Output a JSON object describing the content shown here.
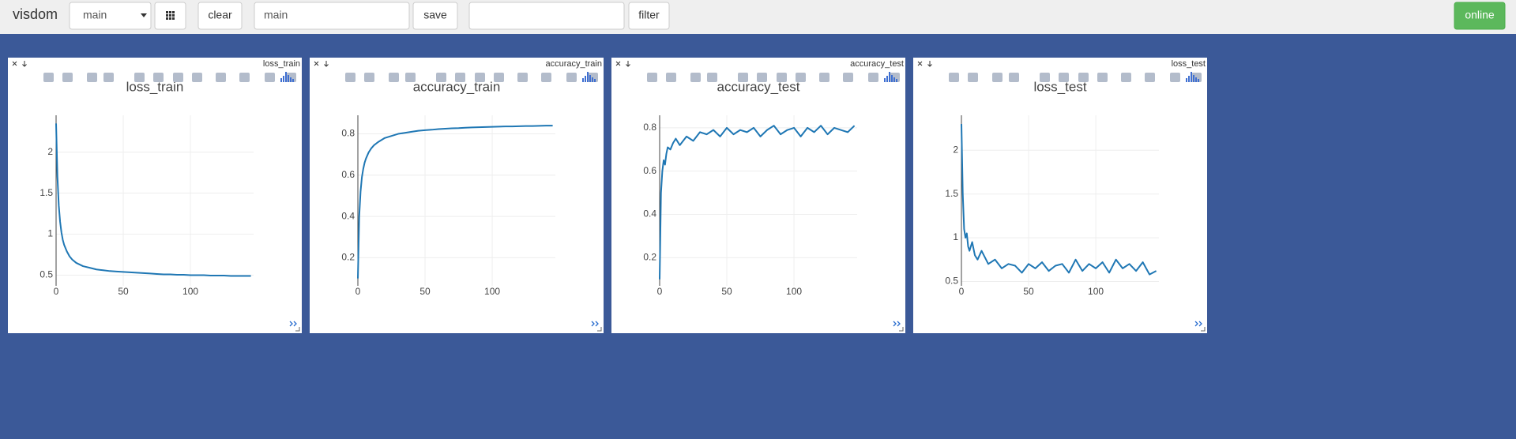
{
  "toolbar": {
    "brand": "visdom",
    "env": "main",
    "clear": "clear",
    "env_name": "main",
    "save": "save",
    "filter": "filter",
    "status": "online"
  },
  "chart_data": [
    {
      "type": "line",
      "window": "loss_train",
      "title": "loss_train",
      "x": [
        0,
        1,
        2,
        3,
        4,
        5,
        6,
        8,
        10,
        12,
        15,
        20,
        25,
        30,
        35,
        40,
        45,
        50,
        55,
        60,
        65,
        70,
        75,
        80,
        85,
        90,
        95,
        100,
        105,
        110,
        115,
        120,
        125,
        130,
        135,
        140,
        145
      ],
      "series": [
        {
          "color": "#1f77b4",
          "values": [
            2.35,
            1.7,
            1.35,
            1.15,
            1.02,
            0.93,
            0.87,
            0.79,
            0.73,
            0.69,
            0.65,
            0.61,
            0.59,
            0.57,
            0.56,
            0.55,
            0.545,
            0.54,
            0.535,
            0.53,
            0.525,
            0.52,
            0.515,
            0.51,
            0.51,
            0.505,
            0.505,
            0.5,
            0.5,
            0.5,
            0.495,
            0.495,
            0.495,
            0.49,
            0.49,
            0.49,
            0.49
          ]
        }
      ],
      "xlim": [
        0,
        147
      ],
      "ylim": [
        0.37,
        2.45
      ],
      "xticks": [
        0,
        50,
        100
      ],
      "yticks": [
        0.5,
        1,
        1.5,
        2
      ],
      "grid": true
    },
    {
      "type": "line",
      "window": "accuracy_train",
      "title": "accuracy_train",
      "x": [
        0,
        1,
        2,
        3,
        4,
        5,
        6,
        8,
        10,
        12,
        15,
        20,
        25,
        30,
        35,
        40,
        45,
        50,
        55,
        60,
        65,
        70,
        75,
        80,
        85,
        90,
        95,
        100,
        105,
        110,
        115,
        120,
        125,
        130,
        135,
        140,
        145
      ],
      "series": [
        {
          "color": "#1f77b4",
          "values": [
            0.1,
            0.4,
            0.52,
            0.59,
            0.63,
            0.66,
            0.68,
            0.71,
            0.73,
            0.745,
            0.76,
            0.78,
            0.79,
            0.8,
            0.805,
            0.81,
            0.815,
            0.818,
            0.82,
            0.823,
            0.825,
            0.827,
            0.828,
            0.83,
            0.831,
            0.832,
            0.833,
            0.834,
            0.835,
            0.836,
            0.836,
            0.837,
            0.838,
            0.838,
            0.839,
            0.84,
            0.84
          ]
        }
      ],
      "xlim": [
        0,
        147
      ],
      "ylim": [
        0.064,
        0.89
      ],
      "xticks": [
        0,
        50,
        100
      ],
      "yticks": [
        0.2,
        0.4,
        0.6,
        0.8
      ],
      "grid": true
    },
    {
      "type": "line",
      "window": "accuracy_test",
      "title": "accuracy_test",
      "x": [
        0,
        1,
        2,
        3,
        4,
        5,
        6,
        8,
        10,
        12,
        15,
        20,
        25,
        30,
        35,
        40,
        45,
        50,
        55,
        60,
        65,
        70,
        75,
        80,
        85,
        90,
        95,
        100,
        105,
        110,
        115,
        120,
        125,
        130,
        135,
        140,
        145
      ],
      "series": [
        {
          "color": "#1f77b4",
          "values": [
            0.1,
            0.5,
            0.6,
            0.65,
            0.63,
            0.68,
            0.71,
            0.7,
            0.73,
            0.75,
            0.72,
            0.76,
            0.74,
            0.78,
            0.77,
            0.79,
            0.76,
            0.8,
            0.77,
            0.79,
            0.78,
            0.8,
            0.76,
            0.79,
            0.81,
            0.77,
            0.79,
            0.8,
            0.76,
            0.8,
            0.78,
            0.81,
            0.77,
            0.8,
            0.79,
            0.78,
            0.81
          ]
        }
      ],
      "xlim": [
        0,
        147
      ],
      "ylim": [
        0.07,
        0.858
      ],
      "xticks": [
        0,
        50,
        100
      ],
      "yticks": [
        0.2,
        0.4,
        0.6,
        0.8
      ],
      "grid": true
    },
    {
      "type": "line",
      "window": "loss_test",
      "title": "loss_test",
      "x": [
        0,
        1,
        2,
        3,
        4,
        5,
        6,
        8,
        10,
        12,
        15,
        20,
        25,
        30,
        35,
        40,
        45,
        50,
        55,
        60,
        65,
        70,
        75,
        80,
        85,
        90,
        95,
        100,
        105,
        110,
        115,
        120,
        125,
        130,
        135,
        140,
        145
      ],
      "series": [
        {
          "color": "#1f77b4",
          "values": [
            2.3,
            1.5,
            1.1,
            1.0,
            1.05,
            0.9,
            0.85,
            0.95,
            0.8,
            0.75,
            0.85,
            0.7,
            0.75,
            0.65,
            0.7,
            0.68,
            0.6,
            0.7,
            0.65,
            0.72,
            0.62,
            0.68,
            0.7,
            0.6,
            0.75,
            0.62,
            0.7,
            0.65,
            0.72,
            0.6,
            0.75,
            0.65,
            0.7,
            0.62,
            0.72,
            0.58,
            0.62
          ]
        }
      ],
      "xlim": [
        0,
        147
      ],
      "ylim": [
        0.45,
        2.4
      ],
      "xticks": [
        0,
        50,
        100
      ],
      "yticks": [
        0.5,
        1,
        1.5,
        2
      ],
      "grid": true
    }
  ]
}
